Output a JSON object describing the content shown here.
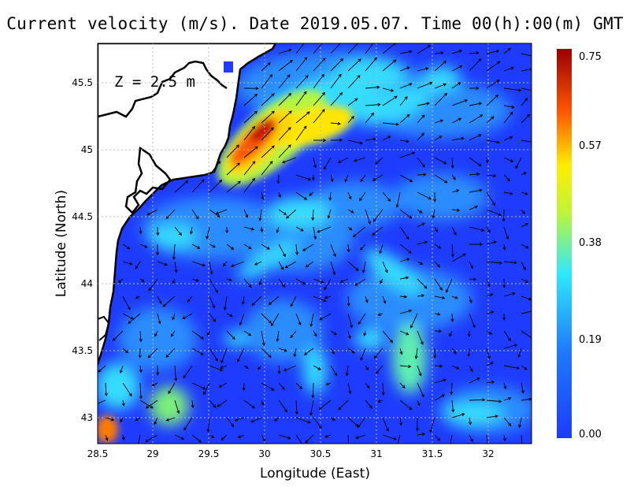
{
  "title": "Current velocity (m/s). Date 2019.05.07. Time 00(h):00(m) GMT",
  "depth_label": "Z = 2.5 m",
  "xlabel": "Longitude (East)",
  "ylabel": "Latitude (North)",
  "x_ticks": [
    "28.5",
    "29",
    "29.5",
    "30",
    "30.5",
    "31",
    "31.5",
    "32"
  ],
  "y_ticks": [
    "43",
    "43.5",
    "44",
    "44.5",
    "45",
    "45.5"
  ],
  "colorbar": {
    "ticks": [
      "0.00",
      "0.19",
      "0.38",
      "0.57",
      "0.75"
    ],
    "min": 0.0,
    "max": 0.75,
    "colors": [
      "#1e3cff",
      "#1f78ff",
      "#2ee8ff",
      "#bff53a",
      "#ffee00",
      "#ff5500",
      "#9a0000"
    ]
  },
  "chart_data": {
    "type": "heatmap",
    "title": "Current velocity (m/s). Date 2019.05.07. Time 00(h):00(m) GMT",
    "xlabel": "Longitude (East)",
    "ylabel": "Latitude (North)",
    "xlim": [
      28.5,
      32.4
    ],
    "ylim": [
      42.8,
      45.8
    ],
    "units": "m/s",
    "colorbar_range": [
      0.0,
      0.75
    ],
    "grid": true,
    "arrows": "current velocity vectors",
    "hotspots": [
      {
        "lon": 30.0,
        "lat": 45.1,
        "speed": 0.74
      },
      {
        "lon": 30.4,
        "lat": 45.2,
        "speed": 0.5
      },
      {
        "lon": 29.7,
        "lat": 44.95,
        "speed": 0.6
      },
      {
        "lon": 31.3,
        "lat": 43.5,
        "speed": 0.4
      },
      {
        "lon": 28.6,
        "lat": 42.9,
        "speed": 0.6
      }
    ]
  }
}
